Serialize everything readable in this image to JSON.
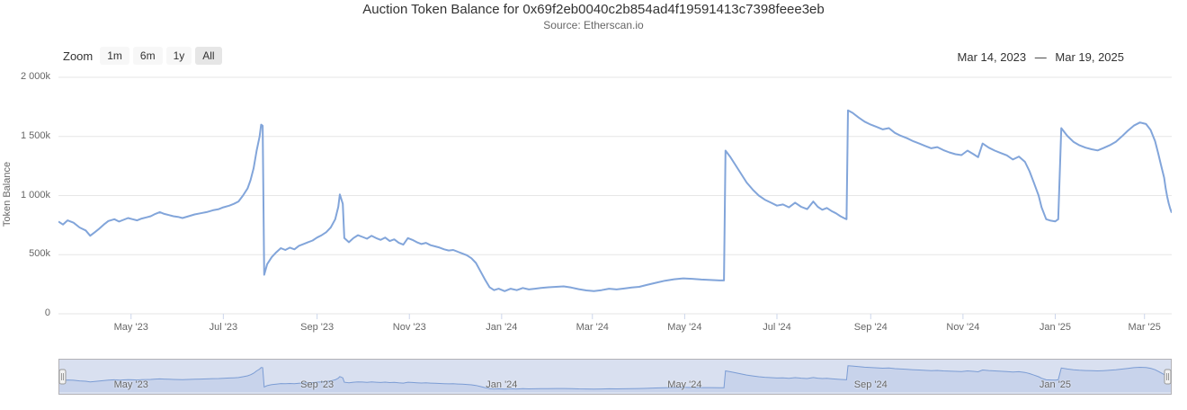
{
  "header": {
    "title": "Auction Token Balance for 0x69f2eb0040c2b854ad4f19591413c7398feee3eb",
    "subtitle": "Source: Etherscan.io"
  },
  "range_selector": {
    "zoom_label": "Zoom",
    "buttons": [
      {
        "label": "1m",
        "selected": false
      },
      {
        "label": "6m",
        "selected": false
      },
      {
        "label": "1y",
        "selected": false
      },
      {
        "label": "All",
        "selected": true
      }
    ],
    "from_date": "Mar 14, 2023",
    "separator": "—",
    "to_date": "Mar 19, 2025"
  },
  "colors": {
    "title": "#333333",
    "subtitle": "#666666",
    "axis_label": "#666666",
    "grid": "#e6e6e6",
    "tick": "#ccd6eb",
    "series": "#82a5da",
    "button_bg": "#f7f7f7",
    "button_selected_bg": "#e6e6e6",
    "nav_fill": "rgba(125,160,214,0.18)",
    "nav_mask": "rgba(102,133,194,0.25)",
    "nav_outline": "#b2b1b6"
  },
  "chart_data": {
    "type": "line",
    "title": "Auction Token Balance for 0x69f2eb0040c2b854ad4f19591413c7398feee3eb",
    "subtitle": "Source: Etherscan.io",
    "ylabel": "Token Balance",
    "y_unit": "thousand tokens (k)",
    "ylim": [
      0,
      2000
    ],
    "grid": true,
    "legend": "none",
    "x_range": [
      "2023-03-14",
      "2025-03-19"
    ],
    "yticks": [
      {
        "label": "2 000k",
        "value": 2000
      },
      {
        "label": "1 500k",
        "value": 1500
      },
      {
        "label": "1 000k",
        "value": 1000
      },
      {
        "label": "500k",
        "value": 500
      },
      {
        "label": "0",
        "value": 0
      }
    ],
    "xticks": [
      {
        "label": "May '23",
        "date": "2023-05-01"
      },
      {
        "label": "Jul '23",
        "date": "2023-07-01"
      },
      {
        "label": "Sep '23",
        "date": "2023-09-01"
      },
      {
        "label": "Nov '23",
        "date": "2023-11-01"
      },
      {
        "label": "Jan '24",
        "date": "2024-01-01"
      },
      {
        "label": "Mar '24",
        "date": "2024-03-01"
      },
      {
        "label": "May '24",
        "date": "2024-05-01"
      },
      {
        "label": "Jul '24",
        "date": "2024-07-01"
      },
      {
        "label": "Sep '24",
        "date": "2024-09-01"
      },
      {
        "label": "Nov '24",
        "date": "2024-11-01"
      },
      {
        "label": "Jan '25",
        "date": "2025-01-01"
      },
      {
        "label": "Mar '25",
        "date": "2025-03-01"
      }
    ],
    "navigator": {
      "labels": [
        {
          "label": "May '23",
          "date": "2023-05-01"
        },
        {
          "label": "Sep '23",
          "date": "2023-09-01"
        },
        {
          "label": "Jan '24",
          "date": "2024-01-01"
        },
        {
          "label": "May '24",
          "date": "2024-05-01"
        },
        {
          "label": "Sep '24",
          "date": "2024-09-01"
        },
        {
          "label": "Jan '25",
          "date": "2025-01-01"
        }
      ]
    },
    "series": [
      {
        "name": "Token Balance",
        "points": [
          [
            "2023-03-14",
            780
          ],
          [
            "2023-03-17",
            755
          ],
          [
            "2023-03-20",
            790
          ],
          [
            "2023-03-24",
            770
          ],
          [
            "2023-03-28",
            730
          ],
          [
            "2023-04-01",
            705
          ],
          [
            "2023-04-04",
            660
          ],
          [
            "2023-04-07",
            690
          ],
          [
            "2023-04-10",
            720
          ],
          [
            "2023-04-13",
            755
          ],
          [
            "2023-04-16",
            785
          ],
          [
            "2023-04-20",
            800
          ],
          [
            "2023-04-23",
            780
          ],
          [
            "2023-04-26",
            795
          ],
          [
            "2023-04-29",
            810
          ],
          [
            "2023-05-02",
            800
          ],
          [
            "2023-05-05",
            790
          ],
          [
            "2023-05-08",
            805
          ],
          [
            "2023-05-11",
            815
          ],
          [
            "2023-05-14",
            825
          ],
          [
            "2023-05-17",
            845
          ],
          [
            "2023-05-20",
            860
          ],
          [
            "2023-05-23",
            845
          ],
          [
            "2023-05-26",
            835
          ],
          [
            "2023-05-29",
            825
          ],
          [
            "2023-06-01",
            820
          ],
          [
            "2023-06-04",
            810
          ],
          [
            "2023-06-08",
            825
          ],
          [
            "2023-06-12",
            840
          ],
          [
            "2023-06-16",
            850
          ],
          [
            "2023-06-20",
            860
          ],
          [
            "2023-06-24",
            875
          ],
          [
            "2023-06-28",
            885
          ],
          [
            "2023-07-01",
            900
          ],
          [
            "2023-07-05",
            915
          ],
          [
            "2023-07-08",
            930
          ],
          [
            "2023-07-11",
            950
          ],
          [
            "2023-07-14",
            1000
          ],
          [
            "2023-07-17",
            1060
          ],
          [
            "2023-07-19",
            1130
          ],
          [
            "2023-07-21",
            1230
          ],
          [
            "2023-07-23",
            1380
          ],
          [
            "2023-07-25",
            1500
          ],
          [
            "2023-07-26",
            1600
          ],
          [
            "2023-07-27",
            1590
          ],
          [
            "2023-07-28",
            330
          ],
          [
            "2023-07-30",
            420
          ],
          [
            "2023-08-02",
            480
          ],
          [
            "2023-08-05",
            520
          ],
          [
            "2023-08-08",
            555
          ],
          [
            "2023-08-11",
            540
          ],
          [
            "2023-08-14",
            560
          ],
          [
            "2023-08-17",
            545
          ],
          [
            "2023-08-20",
            575
          ],
          [
            "2023-08-23",
            590
          ],
          [
            "2023-08-26",
            605
          ],
          [
            "2023-08-29",
            620
          ],
          [
            "2023-09-01",
            645
          ],
          [
            "2023-09-04",
            665
          ],
          [
            "2023-09-07",
            690
          ],
          [
            "2023-09-10",
            730
          ],
          [
            "2023-09-13",
            800
          ],
          [
            "2023-09-15",
            905
          ],
          [
            "2023-09-16",
            1010
          ],
          [
            "2023-09-18",
            930
          ],
          [
            "2023-09-19",
            640
          ],
          [
            "2023-09-22",
            605
          ],
          [
            "2023-09-25",
            640
          ],
          [
            "2023-09-28",
            665
          ],
          [
            "2023-10-01",
            650
          ],
          [
            "2023-10-04",
            635
          ],
          [
            "2023-10-07",
            660
          ],
          [
            "2023-10-10",
            640
          ],
          [
            "2023-10-13",
            625
          ],
          [
            "2023-10-16",
            645
          ],
          [
            "2023-10-19",
            615
          ],
          [
            "2023-10-22",
            630
          ],
          [
            "2023-10-25",
            600
          ],
          [
            "2023-10-28",
            585
          ],
          [
            "2023-10-31",
            640
          ],
          [
            "2023-11-03",
            625
          ],
          [
            "2023-11-06",
            605
          ],
          [
            "2023-11-09",
            590
          ],
          [
            "2023-11-12",
            600
          ],
          [
            "2023-11-15",
            580
          ],
          [
            "2023-11-18",
            570
          ],
          [
            "2023-11-21",
            560
          ],
          [
            "2023-11-24",
            545
          ],
          [
            "2023-11-27",
            535
          ],
          [
            "2023-11-30",
            540
          ],
          [
            "2023-12-03",
            525
          ],
          [
            "2023-12-06",
            510
          ],
          [
            "2023-12-09",
            495
          ],
          [
            "2023-12-12",
            470
          ],
          [
            "2023-12-15",
            430
          ],
          [
            "2023-12-18",
            360
          ],
          [
            "2023-12-21",
            290
          ],
          [
            "2023-12-24",
            225
          ],
          [
            "2023-12-27",
            200
          ],
          [
            "2023-12-30",
            212
          ],
          [
            "2024-01-03",
            192
          ],
          [
            "2024-01-07",
            212
          ],
          [
            "2024-01-11",
            200
          ],
          [
            "2024-01-15",
            218
          ],
          [
            "2024-01-19",
            206
          ],
          [
            "2024-01-23",
            212
          ],
          [
            "2024-01-27",
            218
          ],
          [
            "2024-02-01",
            224
          ],
          [
            "2024-02-06",
            228
          ],
          [
            "2024-02-11",
            232
          ],
          [
            "2024-02-16",
            222
          ],
          [
            "2024-02-21",
            208
          ],
          [
            "2024-02-26",
            198
          ],
          [
            "2024-03-02",
            192
          ],
          [
            "2024-03-07",
            200
          ],
          [
            "2024-03-12",
            212
          ],
          [
            "2024-03-17",
            206
          ],
          [
            "2024-03-22",
            214
          ],
          [
            "2024-03-27",
            222
          ],
          [
            "2024-04-01",
            228
          ],
          [
            "2024-04-06",
            244
          ],
          [
            "2024-04-12",
            262
          ],
          [
            "2024-04-18",
            280
          ],
          [
            "2024-04-24",
            292
          ],
          [
            "2024-04-30",
            300
          ],
          [
            "2024-05-06",
            296
          ],
          [
            "2024-05-12",
            290
          ],
          [
            "2024-05-18",
            286
          ],
          [
            "2024-05-24",
            282
          ],
          [
            "2024-05-27",
            282
          ],
          [
            "2024-05-28",
            1380
          ],
          [
            "2024-05-31",
            1330
          ],
          [
            "2024-06-03",
            1270
          ],
          [
            "2024-06-07",
            1190
          ],
          [
            "2024-06-11",
            1110
          ],
          [
            "2024-06-15",
            1050
          ],
          [
            "2024-06-19",
            1000
          ],
          [
            "2024-06-23",
            965
          ],
          [
            "2024-06-27",
            940
          ],
          [
            "2024-07-01",
            915
          ],
          [
            "2024-07-05",
            925
          ],
          [
            "2024-07-09",
            900
          ],
          [
            "2024-07-13",
            940
          ],
          [
            "2024-07-17",
            905
          ],
          [
            "2024-07-21",
            885
          ],
          [
            "2024-07-25",
            950
          ],
          [
            "2024-07-28",
            905
          ],
          [
            "2024-07-31",
            880
          ],
          [
            "2024-08-03",
            895
          ],
          [
            "2024-08-06",
            870
          ],
          [
            "2024-08-09",
            850
          ],
          [
            "2024-08-12",
            825
          ],
          [
            "2024-08-15",
            805
          ],
          [
            "2024-08-16",
            800
          ],
          [
            "2024-08-17",
            1720
          ],
          [
            "2024-08-20",
            1700
          ],
          [
            "2024-08-24",
            1660
          ],
          [
            "2024-08-28",
            1625
          ],
          [
            "2024-09-01",
            1600
          ],
          [
            "2024-09-05",
            1580
          ],
          [
            "2024-09-09",
            1560
          ],
          [
            "2024-09-13",
            1570
          ],
          [
            "2024-09-17",
            1530
          ],
          [
            "2024-09-21",
            1505
          ],
          [
            "2024-09-25",
            1485
          ],
          [
            "2024-09-29",
            1460
          ],
          [
            "2024-10-03",
            1440
          ],
          [
            "2024-10-07",
            1420
          ],
          [
            "2024-10-11",
            1400
          ],
          [
            "2024-10-15",
            1410
          ],
          [
            "2024-10-19",
            1385
          ],
          [
            "2024-10-23",
            1365
          ],
          [
            "2024-10-27",
            1350
          ],
          [
            "2024-10-31",
            1342
          ],
          [
            "2024-11-04",
            1380
          ],
          [
            "2024-11-08",
            1350
          ],
          [
            "2024-11-11",
            1325
          ],
          [
            "2024-11-14",
            1440
          ],
          [
            "2024-11-18",
            1405
          ],
          [
            "2024-11-22",
            1380
          ],
          [
            "2024-11-26",
            1360
          ],
          [
            "2024-11-30",
            1340
          ],
          [
            "2024-12-04",
            1305
          ],
          [
            "2024-12-08",
            1330
          ],
          [
            "2024-12-12",
            1285
          ],
          [
            "2024-12-15",
            1205
          ],
          [
            "2024-12-18",
            1105
          ],
          [
            "2024-12-21",
            1000
          ],
          [
            "2024-12-23",
            900
          ],
          [
            "2024-12-26",
            800
          ],
          [
            "2024-12-29",
            788
          ],
          [
            "2025-01-01",
            782
          ],
          [
            "2025-01-03",
            800
          ],
          [
            "2025-01-05",
            1570
          ],
          [
            "2025-01-09",
            1505
          ],
          [
            "2025-01-13",
            1455
          ],
          [
            "2025-01-17",
            1425
          ],
          [
            "2025-01-21",
            1405
          ],
          [
            "2025-01-25",
            1392
          ],
          [
            "2025-01-29",
            1382
          ],
          [
            "2025-02-02",
            1402
          ],
          [
            "2025-02-06",
            1425
          ],
          [
            "2025-02-10",
            1455
          ],
          [
            "2025-02-14",
            1500
          ],
          [
            "2025-02-18",
            1548
          ],
          [
            "2025-02-22",
            1592
          ],
          [
            "2025-02-26",
            1618
          ],
          [
            "2025-03-02",
            1605
          ],
          [
            "2025-03-05",
            1555
          ],
          [
            "2025-03-08",
            1460
          ],
          [
            "2025-03-10",
            1360
          ],
          [
            "2025-03-12",
            1255
          ],
          [
            "2025-03-14",
            1150
          ],
          [
            "2025-03-15",
            1060
          ],
          [
            "2025-03-16",
            990
          ],
          [
            "2025-03-17",
            935
          ],
          [
            "2025-03-18",
            890
          ],
          [
            "2025-03-19",
            855
          ]
        ]
      }
    ]
  }
}
